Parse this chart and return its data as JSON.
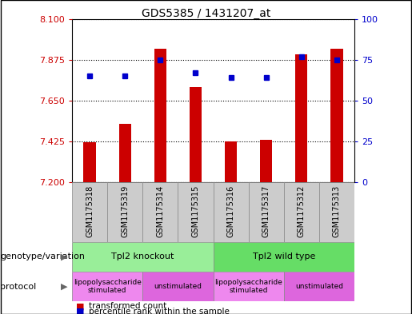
{
  "title": "GDS5385 / 1431207_at",
  "samples": [
    "GSM1175318",
    "GSM1175319",
    "GSM1175314",
    "GSM1175315",
    "GSM1175316",
    "GSM1175317",
    "GSM1175312",
    "GSM1175313"
  ],
  "bar_values": [
    7.42,
    7.52,
    7.935,
    7.725,
    7.425,
    7.435,
    7.905,
    7.935
  ],
  "bar_base": 7.2,
  "percentile_values": [
    65,
    65,
    75,
    67,
    64,
    64,
    77,
    75
  ],
  "ylim_left": [
    7.2,
    8.1
  ],
  "ylim_right": [
    0,
    100
  ],
  "yticks_left": [
    7.2,
    7.425,
    7.65,
    7.875,
    8.1
  ],
  "yticks_right": [
    0,
    25,
    50,
    75,
    100
  ],
  "bar_color": "#cc0000",
  "dot_color": "#0000cc",
  "sample_box_color": "#cccccc",
  "genotype_groups": [
    {
      "label": "Tpl2 knockout",
      "start": 0,
      "end": 3,
      "color": "#99ee99"
    },
    {
      "label": "Tpl2 wild type",
      "start": 4,
      "end": 7,
      "color": "#66dd66"
    }
  ],
  "protocol_groups": [
    {
      "label": "lipopolysaccharide\nstimulated",
      "start": 0,
      "end": 1,
      "color": "#ee88ee"
    },
    {
      "label": "unstimulated",
      "start": 2,
      "end": 3,
      "color": "#dd66dd"
    },
    {
      "label": "lipopolysaccharide\nstimulated",
      "start": 4,
      "end": 5,
      "color": "#ee88ee"
    },
    {
      "label": "unstimulated",
      "start": 6,
      "end": 7,
      "color": "#dd66dd"
    }
  ],
  "legend_red_label": "transformed count",
  "legend_blue_label": "percentile rank within the sample",
  "genotype_label": "genotype/variation",
  "protocol_label": "protocol",
  "label_color_left": "#cc0000",
  "label_color_right": "#0000cc",
  "bar_width": 0.35
}
